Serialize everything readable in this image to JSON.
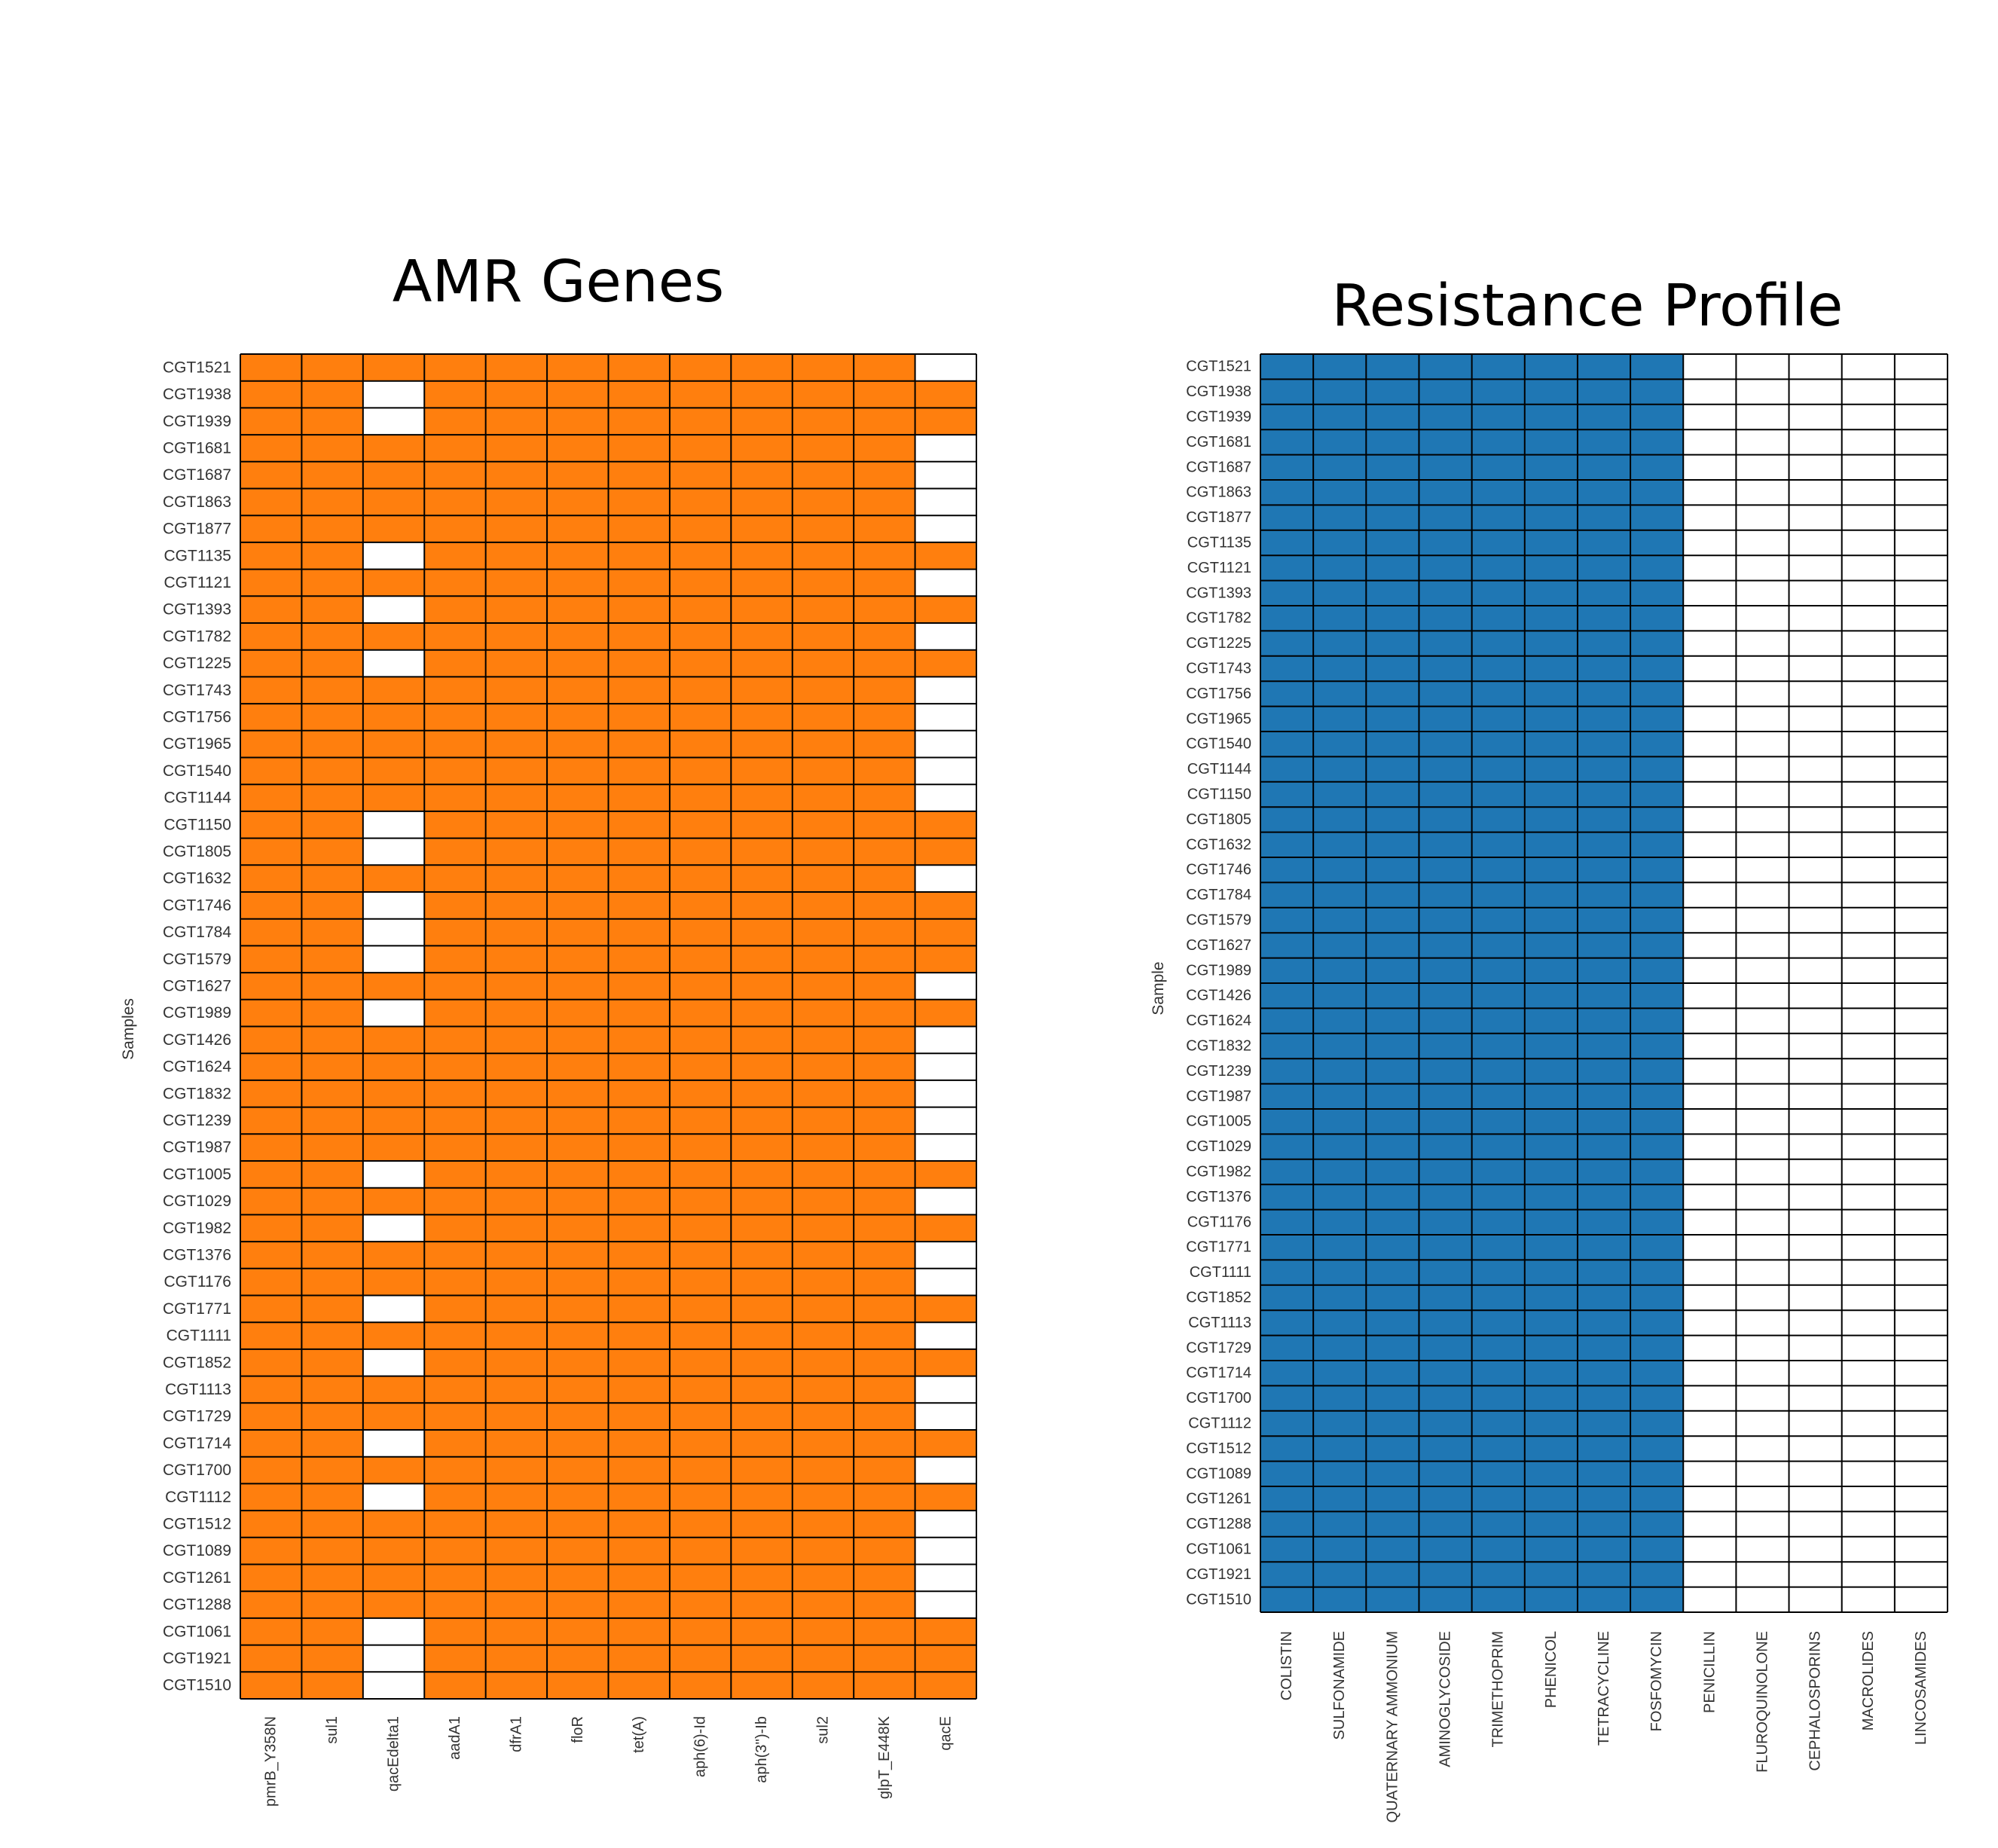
{
  "chart_data": [
    {
      "type": "heatmap",
      "title": "AMR Genes",
      "ylabel": "Samples",
      "xlabel": "",
      "colors": {
        "present": "#ff7f0e",
        "absent": "#ffffff",
        "grid": "#000000"
      },
      "x": [
        "pmrB_Y358N",
        "sul1",
        "qacEdelta1",
        "aadA1",
        "dfrA1",
        "floR",
        "tet(A)",
        "aph(6)-Id",
        "aph(3'')-Ib",
        "sul2",
        "glpT_E448K",
        "qacE"
      ],
      "y": [
        "CGT1521",
        "CGT1938",
        "CGT1939",
        "CGT1681",
        "CGT1687",
        "CGT1863",
        "CGT1877",
        "CGT1135",
        "CGT1121",
        "CGT1393",
        "CGT1782",
        "CGT1225",
        "CGT1743",
        "CGT1756",
        "CGT1965",
        "CGT1540",
        "CGT1144",
        "CGT1150",
        "CGT1805",
        "CGT1632",
        "CGT1746",
        "CGT1784",
        "CGT1579",
        "CGT1627",
        "CGT1989",
        "CGT1426",
        "CGT1624",
        "CGT1832",
        "CGT1239",
        "CGT1987",
        "CGT1005",
        "CGT1029",
        "CGT1982",
        "CGT1376",
        "CGT1176",
        "CGT1771",
        "CGT1111",
        "CGT1852",
        "CGT1113",
        "CGT1729",
        "CGT1714",
        "CGT1700",
        "CGT1112",
        "CGT1512",
        "CGT1089",
        "CGT1261",
        "CGT1288",
        "CGT1061",
        "CGT1921",
        "CGT1510"
      ],
      "values": [
        [
          1,
          1,
          1,
          1,
          1,
          1,
          1,
          1,
          1,
          1,
          1,
          0
        ],
        [
          1,
          1,
          0,
          1,
          1,
          1,
          1,
          1,
          1,
          1,
          1,
          1
        ],
        [
          1,
          1,
          0,
          1,
          1,
          1,
          1,
          1,
          1,
          1,
          1,
          1
        ],
        [
          1,
          1,
          1,
          1,
          1,
          1,
          1,
          1,
          1,
          1,
          1,
          0
        ],
        [
          1,
          1,
          1,
          1,
          1,
          1,
          1,
          1,
          1,
          1,
          1,
          0
        ],
        [
          1,
          1,
          1,
          1,
          1,
          1,
          1,
          1,
          1,
          1,
          1,
          0
        ],
        [
          1,
          1,
          1,
          1,
          1,
          1,
          1,
          1,
          1,
          1,
          1,
          0
        ],
        [
          1,
          1,
          0,
          1,
          1,
          1,
          1,
          1,
          1,
          1,
          1,
          1
        ],
        [
          1,
          1,
          1,
          1,
          1,
          1,
          1,
          1,
          1,
          1,
          1,
          0
        ],
        [
          1,
          1,
          0,
          1,
          1,
          1,
          1,
          1,
          1,
          1,
          1,
          1
        ],
        [
          1,
          1,
          1,
          1,
          1,
          1,
          1,
          1,
          1,
          1,
          1,
          0
        ],
        [
          1,
          1,
          0,
          1,
          1,
          1,
          1,
          1,
          1,
          1,
          1,
          1
        ],
        [
          1,
          1,
          1,
          1,
          1,
          1,
          1,
          1,
          1,
          1,
          1,
          0
        ],
        [
          1,
          1,
          1,
          1,
          1,
          1,
          1,
          1,
          1,
          1,
          1,
          0
        ],
        [
          1,
          1,
          1,
          1,
          1,
          1,
          1,
          1,
          1,
          1,
          1,
          0
        ],
        [
          1,
          1,
          1,
          1,
          1,
          1,
          1,
          1,
          1,
          1,
          1,
          0
        ],
        [
          1,
          1,
          1,
          1,
          1,
          1,
          1,
          1,
          1,
          1,
          1,
          0
        ],
        [
          1,
          1,
          0,
          1,
          1,
          1,
          1,
          1,
          1,
          1,
          1,
          1
        ],
        [
          1,
          1,
          0,
          1,
          1,
          1,
          1,
          1,
          1,
          1,
          1,
          1
        ],
        [
          1,
          1,
          1,
          1,
          1,
          1,
          1,
          1,
          1,
          1,
          1,
          0
        ],
        [
          1,
          1,
          0,
          1,
          1,
          1,
          1,
          1,
          1,
          1,
          1,
          1
        ],
        [
          1,
          1,
          0,
          1,
          1,
          1,
          1,
          1,
          1,
          1,
          1,
          1
        ],
        [
          1,
          1,
          0,
          1,
          1,
          1,
          1,
          1,
          1,
          1,
          1,
          1
        ],
        [
          1,
          1,
          1,
          1,
          1,
          1,
          1,
          1,
          1,
          1,
          1,
          0
        ],
        [
          1,
          1,
          0,
          1,
          1,
          1,
          1,
          1,
          1,
          1,
          1,
          1
        ],
        [
          1,
          1,
          1,
          1,
          1,
          1,
          1,
          1,
          1,
          1,
          1,
          0
        ],
        [
          1,
          1,
          1,
          1,
          1,
          1,
          1,
          1,
          1,
          1,
          1,
          0
        ],
        [
          1,
          1,
          1,
          1,
          1,
          1,
          1,
          1,
          1,
          1,
          1,
          0
        ],
        [
          1,
          1,
          1,
          1,
          1,
          1,
          1,
          1,
          1,
          1,
          1,
          0
        ],
        [
          1,
          1,
          1,
          1,
          1,
          1,
          1,
          1,
          1,
          1,
          1,
          0
        ],
        [
          1,
          1,
          0,
          1,
          1,
          1,
          1,
          1,
          1,
          1,
          1,
          1
        ],
        [
          1,
          1,
          1,
          1,
          1,
          1,
          1,
          1,
          1,
          1,
          1,
          0
        ],
        [
          1,
          1,
          0,
          1,
          1,
          1,
          1,
          1,
          1,
          1,
          1,
          1
        ],
        [
          1,
          1,
          1,
          1,
          1,
          1,
          1,
          1,
          1,
          1,
          1,
          0
        ],
        [
          1,
          1,
          1,
          1,
          1,
          1,
          1,
          1,
          1,
          1,
          1,
          0
        ],
        [
          1,
          1,
          0,
          1,
          1,
          1,
          1,
          1,
          1,
          1,
          1,
          1
        ],
        [
          1,
          1,
          1,
          1,
          1,
          1,
          1,
          1,
          1,
          1,
          1,
          0
        ],
        [
          1,
          1,
          0,
          1,
          1,
          1,
          1,
          1,
          1,
          1,
          1,
          1
        ],
        [
          1,
          1,
          1,
          1,
          1,
          1,
          1,
          1,
          1,
          1,
          1,
          0
        ],
        [
          1,
          1,
          1,
          1,
          1,
          1,
          1,
          1,
          1,
          1,
          1,
          0
        ],
        [
          1,
          1,
          0,
          1,
          1,
          1,
          1,
          1,
          1,
          1,
          1,
          1
        ],
        [
          1,
          1,
          1,
          1,
          1,
          1,
          1,
          1,
          1,
          1,
          1,
          0
        ],
        [
          1,
          1,
          0,
          1,
          1,
          1,
          1,
          1,
          1,
          1,
          1,
          1
        ],
        [
          1,
          1,
          1,
          1,
          1,
          1,
          1,
          1,
          1,
          1,
          1,
          0
        ],
        [
          1,
          1,
          1,
          1,
          1,
          1,
          1,
          1,
          1,
          1,
          1,
          0
        ],
        [
          1,
          1,
          1,
          1,
          1,
          1,
          1,
          1,
          1,
          1,
          1,
          0
        ],
        [
          1,
          1,
          1,
          1,
          1,
          1,
          1,
          1,
          1,
          1,
          1,
          0
        ],
        [
          1,
          1,
          0,
          1,
          1,
          1,
          1,
          1,
          1,
          1,
          1,
          1
        ],
        [
          1,
          1,
          0,
          1,
          1,
          1,
          1,
          1,
          1,
          1,
          1,
          1
        ],
        [
          1,
          1,
          0,
          1,
          1,
          1,
          1,
          1,
          1,
          1,
          1,
          1
        ]
      ]
    },
    {
      "type": "heatmap",
      "title": "Resistance Profile",
      "ylabel": "Sample",
      "xlabel": "",
      "colors": {
        "present": "#1f77b4",
        "absent": "#ffffff",
        "grid": "#000000"
      },
      "x": [
        "COLISTIN",
        "SULFONAMIDE",
        "QUATERNARY AMMONIUM",
        "AMINOGLYCOSIDE",
        "TRIMETHOPRIM",
        "PHENICOL",
        "TETRACYCLINE",
        "FOSFOMYCIN",
        "PENICILLIN",
        "FLUROQUINOLONE",
        "CEPHALOSPORINS",
        "MACROLIDES",
        "LINCOSAMIDES"
      ],
      "y": [
        "CGT1521",
        "CGT1938",
        "CGT1939",
        "CGT1681",
        "CGT1687",
        "CGT1863",
        "CGT1877",
        "CGT1135",
        "CGT1121",
        "CGT1393",
        "CGT1782",
        "CGT1225",
        "CGT1743",
        "CGT1756",
        "CGT1965",
        "CGT1540",
        "CGT1144",
        "CGT1150",
        "CGT1805",
        "CGT1632",
        "CGT1746",
        "CGT1784",
        "CGT1579",
        "CGT1627",
        "CGT1989",
        "CGT1426",
        "CGT1624",
        "CGT1832",
        "CGT1239",
        "CGT1987",
        "CGT1005",
        "CGT1029",
        "CGT1982",
        "CGT1376",
        "CGT1176",
        "CGT1771",
        "CGT1111",
        "CGT1852",
        "CGT1113",
        "CGT1729",
        "CGT1714",
        "CGT1700",
        "CGT1112",
        "CGT1512",
        "CGT1089",
        "CGT1261",
        "CGT1288",
        "CGT1061",
        "CGT1921",
        "CGT1510"
      ],
      "row_pattern": [
        1,
        1,
        1,
        1,
        1,
        1,
        1,
        1,
        0,
        0,
        0,
        0,
        0
      ]
    }
  ]
}
